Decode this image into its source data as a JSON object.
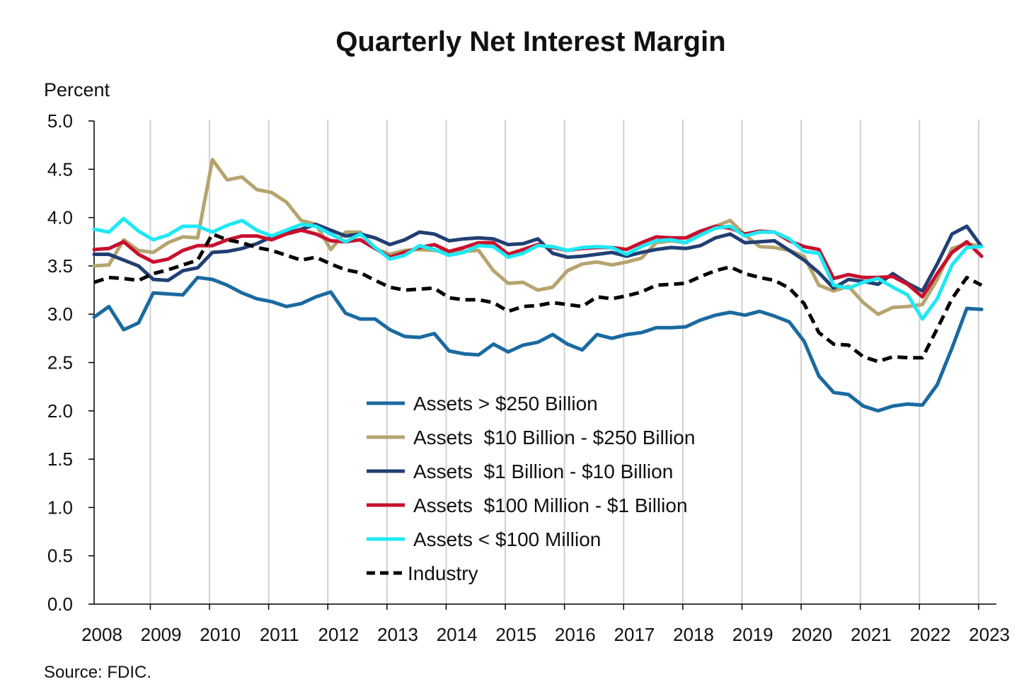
{
  "chart_data": {
    "type": "line",
    "title": "Quarterly Net Interest Margin",
    "ylabel": "Percent",
    "xlabel": "",
    "source": "Source: FDIC.",
    "ylim": [
      0,
      5
    ],
    "y_ticks": [
      "0.0",
      "0.5",
      "1.0",
      "1.5",
      "2.0",
      "2.5",
      "3.0",
      "3.5",
      "4.0",
      "4.5",
      "5.0"
    ],
    "x_ticks": [
      "2008",
      "2009",
      "2010",
      "2011",
      "2012",
      "2013",
      "2014",
      "2015",
      "2016",
      "2017",
      "2018",
      "2019",
      "2020",
      "2021",
      "2022",
      "2023"
    ],
    "xlim": [
      2008.0,
      2023.25
    ],
    "grid": "vertical",
    "legend_position": "center-bottom",
    "x_start": 2008.0,
    "x_step": 0.25,
    "series": [
      {
        "name": "Assets > $250 Billion",
        "color": "#1a6aa0",
        "dash": "solid",
        "values": [
          2.97,
          3.08,
          2.84,
          2.91,
          3.22,
          3.21,
          3.2,
          3.38,
          3.36,
          3.3,
          3.22,
          3.16,
          3.13,
          3.08,
          3.11,
          3.18,
          3.23,
          3.01,
          2.95,
          2.95,
          2.84,
          2.77,
          2.76,
          2.8,
          2.62,
          2.59,
          2.58,
          2.69,
          2.61,
          2.68,
          2.71,
          2.79,
          2.69,
          2.63,
          2.79,
          2.75,
          2.79,
          2.81,
          2.86,
          2.86,
          2.87,
          2.94,
          2.99,
          3.02,
          2.99,
          3.03,
          2.98,
          2.92,
          2.72,
          2.36,
          2.19,
          2.17,
          2.05,
          2.0,
          2.05,
          2.07,
          2.06,
          2.27,
          2.65,
          3.06,
          3.05
        ]
      },
      {
        "name": "Assets  $10 Billion - $250 Billion",
        "color": "#b5a46e",
        "dash": "solid",
        "values": [
          3.5,
          3.51,
          3.77,
          3.66,
          3.64,
          3.74,
          3.8,
          3.79,
          4.6,
          4.39,
          4.42,
          4.29,
          4.26,
          4.16,
          3.97,
          3.93,
          3.67,
          3.85,
          3.85,
          3.68,
          3.62,
          3.66,
          3.67,
          3.66,
          3.64,
          3.65,
          3.66,
          3.45,
          3.32,
          3.33,
          3.25,
          3.28,
          3.45,
          3.52,
          3.54,
          3.51,
          3.54,
          3.58,
          3.74,
          3.76,
          3.74,
          3.85,
          3.91,
          3.97,
          3.82,
          3.7,
          3.69,
          3.66,
          3.6,
          3.3,
          3.24,
          3.29,
          3.12,
          3.0,
          3.07,
          3.08,
          3.1,
          3.36,
          3.68,
          3.73,
          3.7
        ]
      },
      {
        "name": "Assets  $1 Billion - $10 Billion",
        "color": "#213f73",
        "dash": "solid",
        "values": [
          3.62,
          3.62,
          3.56,
          3.5,
          3.36,
          3.35,
          3.45,
          3.48,
          3.64,
          3.65,
          3.68,
          3.73,
          3.8,
          3.84,
          3.88,
          3.93,
          3.87,
          3.81,
          3.83,
          3.79,
          3.72,
          3.77,
          3.85,
          3.83,
          3.76,
          3.78,
          3.79,
          3.78,
          3.72,
          3.73,
          3.78,
          3.63,
          3.59,
          3.6,
          3.62,
          3.64,
          3.6,
          3.64,
          3.67,
          3.69,
          3.68,
          3.71,
          3.79,
          3.83,
          3.74,
          3.75,
          3.76,
          3.66,
          3.56,
          3.43,
          3.27,
          3.36,
          3.34,
          3.31,
          3.42,
          3.32,
          3.24,
          3.52,
          3.83,
          3.91,
          3.7
        ]
      },
      {
        "name": "Assets  $100 Million - $1 Billion",
        "color": "#c8102e",
        "dash": "solid",
        "values": [
          3.67,
          3.68,
          3.75,
          3.62,
          3.54,
          3.57,
          3.66,
          3.71,
          3.71,
          3.77,
          3.81,
          3.81,
          3.77,
          3.83,
          3.87,
          3.83,
          3.76,
          3.75,
          3.77,
          3.68,
          3.59,
          3.64,
          3.69,
          3.72,
          3.65,
          3.69,
          3.74,
          3.74,
          3.62,
          3.67,
          3.72,
          3.69,
          3.66,
          3.68,
          3.69,
          3.69,
          3.67,
          3.74,
          3.8,
          3.79,
          3.79,
          3.86,
          3.91,
          3.89,
          3.83,
          3.86,
          3.85,
          3.76,
          3.7,
          3.67,
          3.37,
          3.41,
          3.38,
          3.38,
          3.39,
          3.31,
          3.18,
          3.42,
          3.64,
          3.75,
          3.6
        ]
      },
      {
        "name": "Assets < $100 Million",
        "color": "#1ee8f5",
        "dash": "solid",
        "values": [
          3.88,
          3.85,
          3.99,
          3.86,
          3.77,
          3.82,
          3.91,
          3.91,
          3.85,
          3.92,
          3.97,
          3.87,
          3.81,
          3.87,
          3.93,
          3.91,
          3.83,
          3.75,
          3.83,
          3.69,
          3.57,
          3.61,
          3.71,
          3.67,
          3.61,
          3.64,
          3.71,
          3.7,
          3.59,
          3.63,
          3.71,
          3.7,
          3.66,
          3.69,
          3.7,
          3.69,
          3.62,
          3.7,
          3.76,
          3.77,
          3.74,
          3.82,
          3.89,
          3.91,
          3.81,
          3.85,
          3.85,
          3.78,
          3.65,
          3.63,
          3.3,
          3.27,
          3.33,
          3.37,
          3.28,
          3.2,
          2.95,
          3.16,
          3.51,
          3.69,
          3.7
        ]
      },
      {
        "name": "Industry",
        "color": "#000000",
        "dash": "dashed",
        "values": [
          3.33,
          3.38,
          3.37,
          3.35,
          3.42,
          3.46,
          3.51,
          3.56,
          3.83,
          3.77,
          3.74,
          3.69,
          3.66,
          3.61,
          3.56,
          3.59,
          3.52,
          3.46,
          3.43,
          3.35,
          3.28,
          3.25,
          3.26,
          3.27,
          3.17,
          3.15,
          3.15,
          3.12,
          3.03,
          3.08,
          3.09,
          3.12,
          3.1,
          3.08,
          3.18,
          3.16,
          3.19,
          3.23,
          3.3,
          3.31,
          3.32,
          3.39,
          3.45,
          3.49,
          3.42,
          3.38,
          3.35,
          3.27,
          3.11,
          2.81,
          2.69,
          2.68,
          2.56,
          2.51,
          2.56,
          2.55,
          2.55,
          2.85,
          3.16,
          3.38,
          3.3
        ]
      }
    ]
  }
}
